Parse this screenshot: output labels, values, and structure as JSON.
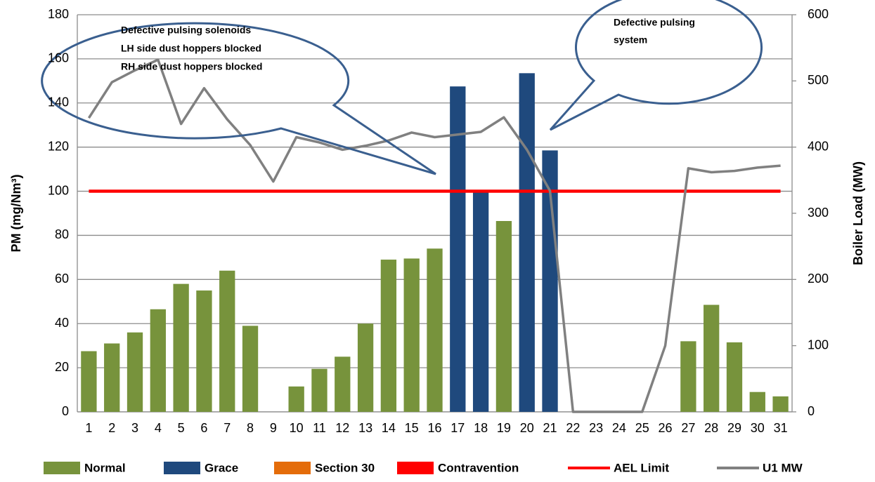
{
  "chart_data": {
    "type": "bar",
    "categories": [
      "1",
      "2",
      "3",
      "4",
      "5",
      "6",
      "7",
      "8",
      "9",
      "10",
      "11",
      "12",
      "13",
      "14",
      "15",
      "16",
      "17",
      "18",
      "19",
      "20",
      "21",
      "22",
      "23",
      "24",
      "25",
      "26",
      "27",
      "28",
      "29",
      "30",
      "31"
    ],
    "y_label": "PM (mg/Nm³)",
    "y2_label": "Boiler Load (MW)",
    "ylim": [
      0,
      180
    ],
    "yticks": [
      0,
      20,
      40,
      60,
      80,
      100,
      120,
      140,
      160,
      180
    ],
    "y2lim": [
      0,
      600
    ],
    "y2ticks": [
      0,
      100,
      200,
      300,
      400,
      500,
      600
    ],
    "grid": true,
    "legend": "bottom",
    "annotations": [
      {
        "lines": [
          "Defective pulsing solenoids",
          "LH side dust hoppers blocked",
          "RH side dust hoppers blocked"
        ]
      },
      {
        "lines": [
          "Defective pulsing",
          "system"
        ]
      }
    ],
    "series": [
      {
        "name": "Normal",
        "type": "bar",
        "color": "#77933c",
        "values": [
          27.5,
          31,
          36,
          46.5,
          58,
          55,
          64,
          39,
          null,
          11.5,
          19.5,
          25,
          40,
          69,
          69.5,
          74,
          null,
          null,
          86.5,
          null,
          null,
          null,
          null,
          null,
          null,
          null,
          32,
          48.5,
          31.5,
          9,
          7
        ]
      },
      {
        "name": "Grace",
        "type": "bar",
        "color": "#1f497d",
        "values": [
          null,
          null,
          null,
          null,
          null,
          null,
          null,
          null,
          null,
          null,
          null,
          null,
          null,
          null,
          null,
          null,
          147.5,
          100,
          null,
          153.5,
          118.5,
          null,
          null,
          null,
          null,
          null,
          null,
          null,
          null,
          null,
          null
        ]
      },
      {
        "name": "Section 30",
        "type": "bar",
        "color": "#e46c0a",
        "values": [
          null,
          null,
          null,
          null,
          null,
          null,
          null,
          null,
          null,
          null,
          null,
          null,
          null,
          null,
          null,
          null,
          null,
          null,
          null,
          null,
          null,
          null,
          null,
          null,
          null,
          null,
          null,
          null,
          null,
          null,
          null
        ]
      },
      {
        "name": "Contravention",
        "type": "bar",
        "color": "#ff0000",
        "values": [
          null,
          null,
          null,
          null,
          null,
          null,
          null,
          null,
          null,
          null,
          null,
          null,
          null,
          null,
          null,
          null,
          null,
          null,
          null,
          null,
          null,
          null,
          null,
          null,
          null,
          null,
          null,
          null,
          null,
          null,
          null
        ]
      },
      {
        "name": "AEL Limit",
        "type": "line",
        "color": "#ff0000",
        "values": [
          100,
          100,
          100,
          100,
          100,
          100,
          100,
          100,
          100,
          100,
          100,
          100,
          100,
          100,
          100,
          100,
          100,
          100,
          100,
          100,
          100,
          100,
          100,
          100,
          100,
          100,
          100,
          100,
          100,
          100,
          100
        ]
      },
      {
        "name": "U1 MW",
        "type": "line",
        "axis": "y2",
        "color": "#808080",
        "values": [
          444,
          498,
          516,
          532,
          435,
          489,
          442,
          403,
          348,
          415,
          407,
          396,
          402,
          410,
          422,
          415,
          419,
          423,
          445,
          396,
          334,
          0,
          0,
          0,
          0,
          100,
          368,
          362,
          364,
          369,
          372
        ]
      }
    ]
  }
}
